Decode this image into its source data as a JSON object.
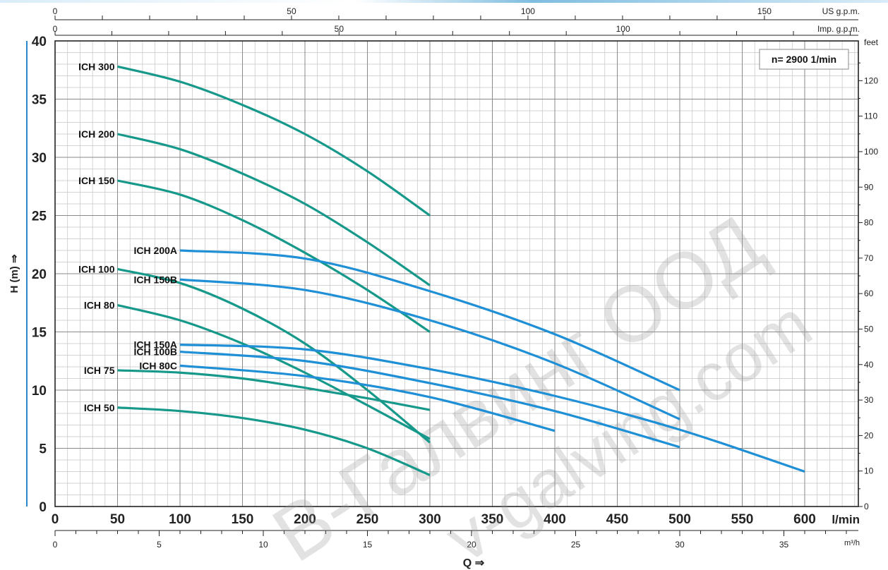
{
  "chart_data": {
    "type": "line",
    "speed_label": "n= 2900  1/min",
    "y_axis": {
      "label": "H (m) ⇒",
      "range": [
        0,
        40
      ],
      "ticks": [
        0,
        5,
        10,
        15,
        20,
        25,
        30,
        35,
        40
      ]
    },
    "y2_axis": {
      "unit": "feet",
      "range": [
        0,
        131.2
      ],
      "ticks": [
        0,
        10,
        20,
        30,
        40,
        50,
        60,
        70,
        80,
        90,
        100,
        110,
        120
      ]
    },
    "x_axis": {
      "label": "Q ⇒",
      "unit": "l/min",
      "range": [
        0,
        650
      ],
      "ticks": [
        0,
        50,
        100,
        150,
        200,
        250,
        300,
        350,
        400,
        450,
        500,
        550,
        600
      ]
    },
    "x_axis_m3h": {
      "unit": "m³/h",
      "range": [
        0,
        39
      ],
      "ticks": [
        0,
        5,
        10,
        15,
        20,
        25,
        30,
        35
      ]
    },
    "x_axis_us": {
      "unit": "US g.p.m.",
      "range": [
        0,
        171.7
      ],
      "ticks": [
        0,
        50,
        100,
        150
      ]
    },
    "x_axis_imp": {
      "unit": "Imp. g.p.m.",
      "range": [
        0,
        143
      ],
      "ticks": [
        0,
        50,
        100
      ]
    },
    "grid": true,
    "series": [
      {
        "name": "ICH 300",
        "color": "#16998a",
        "x": [
          50,
          100,
          150,
          200,
          250,
          300
        ],
        "y": [
          37.8,
          36.5,
          34.5,
          32,
          28.8,
          25
        ]
      },
      {
        "name": "ICH 200",
        "color": "#16998a",
        "x": [
          50,
          100,
          150,
          200,
          250,
          300
        ],
        "y": [
          32,
          30.7,
          28.6,
          26,
          22.7,
          19
        ]
      },
      {
        "name": "ICH 150",
        "color": "#16998a",
        "x": [
          50,
          100,
          150,
          200,
          250,
          300
        ],
        "y": [
          28,
          26.8,
          24.6,
          21.8,
          18.6,
          15
        ]
      },
      {
        "name": "ICH 100",
        "color": "#16998a",
        "x": [
          50,
          100,
          150,
          200,
          250,
          300
        ],
        "y": [
          20.4,
          19.2,
          17,
          14,
          10,
          5.5
        ]
      },
      {
        "name": "ICH 80",
        "color": "#16998a",
        "x": [
          50,
          100,
          150,
          200,
          250,
          300
        ],
        "y": [
          17.3,
          16,
          14,
          11.5,
          8.7,
          5.8
        ]
      },
      {
        "name": "ICH 75",
        "color": "#16998a",
        "x": [
          50,
          100,
          150,
          200,
          250,
          300
        ],
        "y": [
          11.7,
          11.5,
          11,
          10.2,
          9.3,
          8.3
        ]
      },
      {
        "name": "ICH 50",
        "color": "#16998a",
        "x": [
          50,
          100,
          150,
          200,
          250,
          300
        ],
        "y": [
          8.5,
          8.2,
          7.6,
          6.6,
          5,
          2.7
        ]
      },
      {
        "name": "ICH 200A",
        "color": "#1f8fd6",
        "x": [
          100,
          200,
          300,
          400,
          500
        ],
        "y": [
          22,
          21.3,
          18.5,
          14.8,
          10
        ]
      },
      {
        "name": "ICH 150B",
        "color": "#1f8fd6",
        "x": [
          100,
          200,
          300,
          400,
          500
        ],
        "y": [
          19.5,
          18.6,
          16,
          12.3,
          7.5
        ]
      },
      {
        "name": "ICH 150A",
        "color": "#1f8fd6",
        "x": [
          100,
          200,
          300,
          400,
          500,
          600
        ],
        "y": [
          13.9,
          13.5,
          11.8,
          9.5,
          6.6,
          3
        ]
      },
      {
        "name": "ICH 100B",
        "color": "#1f8fd6",
        "x": [
          100,
          200,
          300,
          400,
          500
        ],
        "y": [
          13.3,
          12.5,
          10.6,
          8.2,
          5.1
        ]
      },
      {
        "name": "ICH 80C",
        "color": "#1f8fd6",
        "x": [
          100,
          200,
          300,
          400
        ],
        "y": [
          12.1,
          11.2,
          9.4,
          6.5
        ]
      }
    ]
  },
  "watermark": {
    "line1": "В-Галвинг ООД",
    "line2": "v-galving.com"
  }
}
